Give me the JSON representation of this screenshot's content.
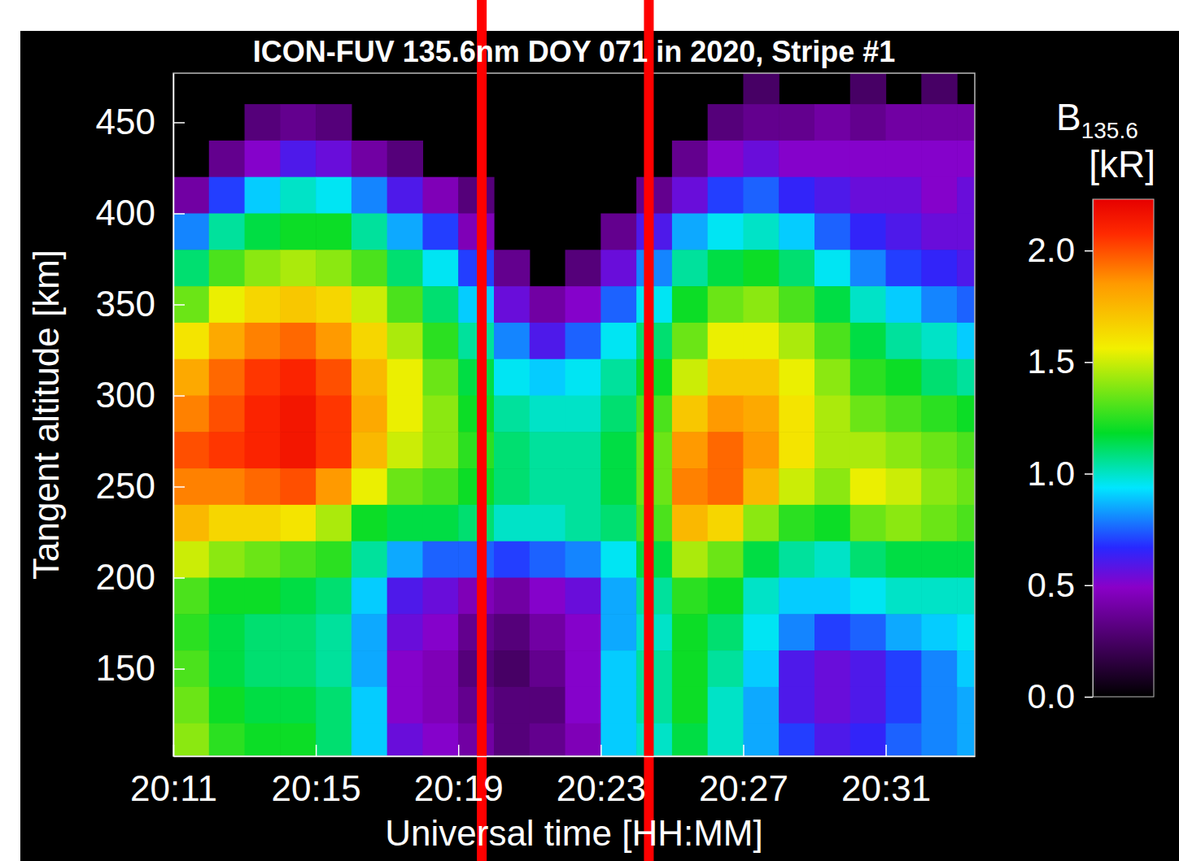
{
  "chart_data": {
    "type": "heatmap",
    "title": "ICON-FUV 135.6nm DOY 071 in 2020, Stripe #1",
    "x_label": "Universal time [HH:MM]",
    "y_label": "Tangent altitude [km]",
    "x": [
      1211,
      1212,
      1213,
      1214,
      1215,
      1216,
      1217,
      1218,
      1219,
      1220,
      1221,
      1222,
      1223,
      1224,
      1225,
      1226,
      1227,
      1228,
      1229,
      1230,
      1231,
      1232,
      1233
    ],
    "y": [
      460,
      440,
      420,
      400,
      380,
      360,
      340,
      320,
      300,
      280,
      260,
      240,
      220,
      200,
      180,
      160,
      140,
      120,
      100
    ],
    "values": [
      [
        null,
        null,
        null,
        null,
        null,
        null,
        null,
        null,
        null,
        null,
        null,
        null,
        null,
        null,
        null,
        null,
        0.25,
        null,
        null,
        0.25,
        null,
        0.25,
        null
      ],
      [
        null,
        null,
        0.3,
        0.35,
        0.3,
        null,
        null,
        null,
        null,
        null,
        null,
        null,
        null,
        null,
        null,
        0.3,
        0.35,
        0.35,
        0.4,
        0.35,
        0.4,
        0.4,
        0.4
      ],
      [
        null,
        0.35,
        0.5,
        0.6,
        0.55,
        0.4,
        0.3,
        null,
        null,
        null,
        null,
        null,
        null,
        null,
        0.35,
        0.5,
        0.55,
        0.5,
        0.5,
        0.5,
        0.5,
        0.5,
        0.5
      ],
      [
        0.4,
        0.7,
        0.9,
        1.0,
        0.95,
        0.8,
        0.6,
        0.45,
        0.3,
        null,
        null,
        null,
        null,
        0.35,
        0.55,
        0.7,
        0.75,
        0.65,
        0.6,
        0.55,
        0.55,
        0.5,
        0.55
      ],
      [
        0.8,
        1.05,
        1.15,
        1.2,
        1.2,
        1.05,
        0.85,
        0.7,
        0.45,
        null,
        null,
        null,
        0.35,
        0.6,
        0.85,
        0.95,
        1.0,
        0.9,
        0.75,
        0.65,
        0.6,
        0.55,
        0.55
      ],
      [
        1.1,
        1.3,
        1.4,
        1.45,
        1.4,
        1.3,
        1.1,
        0.95,
        0.7,
        0.35,
        null,
        0.3,
        0.55,
        0.8,
        1.05,
        1.15,
        1.2,
        1.1,
        0.95,
        0.8,
        0.7,
        0.65,
        0.6
      ],
      [
        1.35,
        1.55,
        1.65,
        1.7,
        1.65,
        1.5,
        1.3,
        1.1,
        0.9,
        0.55,
        0.4,
        0.5,
        0.75,
        0.95,
        1.2,
        1.35,
        1.4,
        1.3,
        1.15,
        1.0,
        0.9,
        0.8,
        0.75
      ],
      [
        1.6,
        1.8,
        1.9,
        1.95,
        1.85,
        1.65,
        1.45,
        1.25,
        1.05,
        0.8,
        0.6,
        0.75,
        0.95,
        1.1,
        1.35,
        1.55,
        1.55,
        1.45,
        1.3,
        1.15,
        1.05,
        1.0,
        0.9
      ],
      [
        1.8,
        1.95,
        2.05,
        2.1,
        2.0,
        1.75,
        1.55,
        1.35,
        1.15,
        0.95,
        0.9,
        0.95,
        1.05,
        1.2,
        1.5,
        1.7,
        1.7,
        1.55,
        1.4,
        1.25,
        1.2,
        1.1,
        1.05
      ],
      [
        1.9,
        2.0,
        2.1,
        2.15,
        2.05,
        1.8,
        1.55,
        1.4,
        1.2,
        1.05,
        1.0,
        1.0,
        1.1,
        1.3,
        1.7,
        1.85,
        1.8,
        1.6,
        1.45,
        1.35,
        1.3,
        1.25,
        1.2
      ],
      [
        2.0,
        2.05,
        2.1,
        2.15,
        2.05,
        1.75,
        1.5,
        1.4,
        1.25,
        1.1,
        1.05,
        1.05,
        1.15,
        1.35,
        1.85,
        1.95,
        1.85,
        1.6,
        1.45,
        1.45,
        1.4,
        1.35,
        1.3
      ],
      [
        1.9,
        1.9,
        1.95,
        2.0,
        1.85,
        1.55,
        1.35,
        1.3,
        1.2,
        1.1,
        1.05,
        1.05,
        1.15,
        1.35,
        1.9,
        1.95,
        1.75,
        1.5,
        1.4,
        1.55,
        1.5,
        1.4,
        1.35
      ],
      [
        1.75,
        1.65,
        1.65,
        1.6,
        1.45,
        1.2,
        1.15,
        1.15,
        1.1,
        1.0,
        1.0,
        1.05,
        1.1,
        1.3,
        1.75,
        1.65,
        1.4,
        1.25,
        1.2,
        1.35,
        1.4,
        1.35,
        1.3
      ],
      [
        1.5,
        1.4,
        1.35,
        1.3,
        1.25,
        1.05,
        0.85,
        0.75,
        0.75,
        0.7,
        0.75,
        0.8,
        0.95,
        1.15,
        1.45,
        1.35,
        1.15,
        1.05,
        1.0,
        1.1,
        1.15,
        1.15,
        1.15
      ],
      [
        1.3,
        1.2,
        1.2,
        1.15,
        1.1,
        0.9,
        0.6,
        0.55,
        0.45,
        0.4,
        0.5,
        0.55,
        0.85,
        1.05,
        1.25,
        1.2,
        1.0,
        0.9,
        0.9,
        0.95,
        1.0,
        1.0,
        1.0
      ],
      [
        1.25,
        1.15,
        1.1,
        1.1,
        1.05,
        0.85,
        0.55,
        0.5,
        0.35,
        0.3,
        0.4,
        0.5,
        0.85,
        1.0,
        1.2,
        1.1,
        0.95,
        0.8,
        0.7,
        0.75,
        0.85,
        0.9,
        0.95
      ],
      [
        1.3,
        1.15,
        1.1,
        1.1,
        1.05,
        0.85,
        0.5,
        0.45,
        0.3,
        0.25,
        0.35,
        0.5,
        0.9,
        1.05,
        1.2,
        1.05,
        0.9,
        0.6,
        0.55,
        0.6,
        0.7,
        0.8,
        0.9
      ],
      [
        1.35,
        1.2,
        1.15,
        1.15,
        1.1,
        0.9,
        0.5,
        0.45,
        0.35,
        0.3,
        0.3,
        0.5,
        0.9,
        1.05,
        1.2,
        1.0,
        0.85,
        0.6,
        0.55,
        0.6,
        0.7,
        0.8,
        0.85
      ],
      [
        1.4,
        1.25,
        1.2,
        1.2,
        1.1,
        0.9,
        0.55,
        0.5,
        0.4,
        0.3,
        0.35,
        0.45,
        0.9,
        1.0,
        1.15,
        1.0,
        0.85,
        0.7,
        0.6,
        0.65,
        0.75,
        0.8,
        0.85
      ]
    ],
    "xlim": [
      1211,
      1233.5
    ],
    "ylim": [
      102,
      477
    ],
    "xticks": [
      {
        "value": 1211,
        "label": "20:11"
      },
      {
        "value": 1215,
        "label": "20:15"
      },
      {
        "value": 1219,
        "label": "20:19"
      },
      {
        "value": 1223,
        "label": "20:23"
      },
      {
        "value": 1227,
        "label": "20:27"
      },
      {
        "value": 1231,
        "label": "20:31"
      }
    ],
    "yticks": [
      150,
      200,
      250,
      300,
      350,
      400,
      450
    ],
    "colorbar": {
      "label": "B",
      "label_sub": "135.6",
      "unit": "[kR]",
      "range": [
        0,
        2.23
      ],
      "ticks": [
        {
          "value": 0,
          "label": "0.0"
        },
        {
          "value": 0.5,
          "label": "0.5"
        },
        {
          "value": 1,
          "label": "1.0"
        },
        {
          "value": 1.5,
          "label": "1.5"
        },
        {
          "value": 2,
          "label": "2.0"
        }
      ]
    },
    "highlight": {
      "x": [
        1219.66,
        1224.35
      ],
      "color": "#ff0000"
    }
  }
}
